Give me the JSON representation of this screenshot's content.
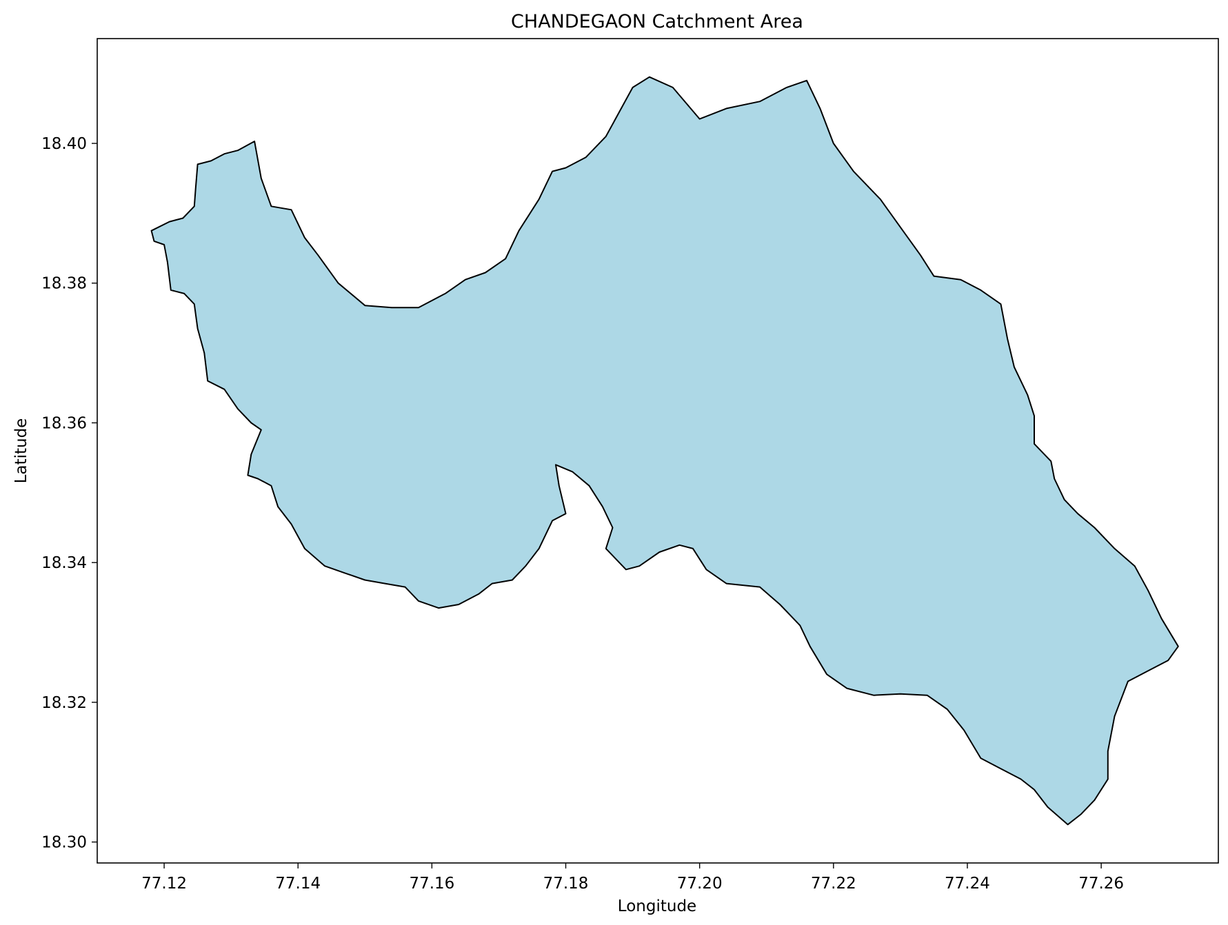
{
  "map": {
    "title": "CHANDEGAON Catchment Area",
    "xlabel": "Longitude",
    "ylabel": "Latitude",
    "x_ticks": [
      "77.12",
      "77.14",
      "77.16",
      "77.18",
      "77.20",
      "77.22",
      "77.24",
      "77.26"
    ],
    "y_ticks": [
      "18.40",
      "18.38",
      "18.36",
      "18.34",
      "18.32",
      "18.30"
    ],
    "xlim": [
      77.11,
      77.2775
    ],
    "ylim": [
      18.297,
      18.415
    ],
    "grid": false,
    "fill_color": "#add8e6",
    "edge_color": "#000000",
    "boundary": [
      [
        77.1181,
        18.3875
      ],
      [
        77.1208,
        18.3888
      ],
      [
        77.1228,
        18.3893
      ],
      [
        77.1245,
        18.391
      ],
      [
        77.1247,
        18.3935
      ],
      [
        77.125,
        18.397
      ],
      [
        77.127,
        18.3975
      ],
      [
        77.129,
        18.3985
      ],
      [
        77.131,
        18.399
      ],
      [
        77.1335,
        18.4003
      ],
      [
        77.1345,
        18.395
      ],
      [
        77.136,
        18.391
      ],
      [
        77.139,
        18.3905
      ],
      [
        77.141,
        18.3865
      ],
      [
        77.143,
        18.384
      ],
      [
        77.146,
        18.38
      ],
      [
        77.15,
        18.3768
      ],
      [
        77.154,
        18.3765
      ],
      [
        77.158,
        18.3765
      ],
      [
        77.162,
        18.3785
      ],
      [
        77.165,
        18.3805
      ],
      [
        77.168,
        18.3815
      ],
      [
        77.171,
        18.3835
      ],
      [
        77.173,
        18.3875
      ],
      [
        77.176,
        18.392
      ],
      [
        77.178,
        18.396
      ],
      [
        77.18,
        18.3965
      ],
      [
        77.183,
        18.398
      ],
      [
        77.186,
        18.401
      ],
      [
        77.188,
        18.4045
      ],
      [
        77.19,
        18.408
      ],
      [
        77.1925,
        18.4095
      ],
      [
        77.196,
        18.408
      ],
      [
        77.2,
        18.4035
      ],
      [
        77.204,
        18.405
      ],
      [
        77.209,
        18.406
      ],
      [
        77.213,
        18.408
      ],
      [
        77.216,
        18.409
      ],
      [
        77.218,
        18.405
      ],
      [
        77.22,
        18.4
      ],
      [
        77.223,
        18.396
      ],
      [
        77.227,
        18.392
      ],
      [
        77.23,
        18.388
      ],
      [
        77.233,
        18.384
      ],
      [
        77.235,
        18.381
      ],
      [
        77.239,
        18.3805
      ],
      [
        77.242,
        18.379
      ],
      [
        77.245,
        18.377
      ],
      [
        77.246,
        18.372
      ],
      [
        77.247,
        18.368
      ],
      [
        77.249,
        18.364
      ],
      [
        77.25,
        18.361
      ],
      [
        77.25,
        18.357
      ],
      [
        77.2525,
        18.3545
      ],
      [
        77.253,
        18.352
      ],
      [
        77.2545,
        18.349
      ],
      [
        77.2565,
        18.347
      ],
      [
        77.259,
        18.345
      ],
      [
        77.262,
        18.342
      ],
      [
        77.265,
        18.3395
      ],
      [
        77.267,
        18.336
      ],
      [
        77.269,
        18.332
      ],
      [
        77.2715,
        18.328
      ],
      [
        77.27,
        18.326
      ],
      [
        77.267,
        18.3245
      ],
      [
        77.264,
        18.323
      ],
      [
        77.262,
        18.318
      ],
      [
        77.261,
        18.313
      ],
      [
        77.261,
        18.309
      ],
      [
        77.259,
        18.306
      ],
      [
        77.257,
        18.304
      ],
      [
        77.255,
        18.3025
      ],
      [
        77.252,
        18.305
      ],
      [
        77.25,
        18.3075
      ],
      [
        77.248,
        18.309
      ],
      [
        77.245,
        18.3105
      ],
      [
        77.242,
        18.312
      ],
      [
        77.2395,
        18.316
      ],
      [
        77.237,
        18.319
      ],
      [
        77.234,
        18.321
      ],
      [
        77.23,
        18.3212
      ],
      [
        77.226,
        18.321
      ],
      [
        77.222,
        18.322
      ],
      [
        77.219,
        18.324
      ],
      [
        77.2165,
        18.328
      ],
      [
        77.215,
        18.331
      ],
      [
        77.212,
        18.334
      ],
      [
        77.209,
        18.3365
      ],
      [
        77.204,
        18.337
      ],
      [
        77.201,
        18.339
      ],
      [
        77.199,
        18.342
      ],
      [
        77.197,
        18.3425
      ],
      [
        77.194,
        18.3415
      ],
      [
        77.191,
        18.3395
      ],
      [
        77.189,
        18.339
      ],
      [
        77.186,
        18.342
      ],
      [
        77.187,
        18.345
      ],
      [
        77.1855,
        18.348
      ],
      [
        77.1835,
        18.351
      ],
      [
        77.181,
        18.353
      ],
      [
        77.1785,
        18.354
      ],
      [
        77.179,
        18.351
      ],
      [
        77.18,
        18.347
      ],
      [
        77.178,
        18.346
      ],
      [
        77.176,
        18.342
      ],
      [
        77.174,
        18.3395
      ],
      [
        77.172,
        18.3375
      ],
      [
        77.169,
        18.337
      ],
      [
        77.167,
        18.3355
      ],
      [
        77.164,
        18.334
      ],
      [
        77.161,
        18.3335
      ],
      [
        77.158,
        18.3345
      ],
      [
        77.156,
        18.3365
      ],
      [
        77.153,
        18.337
      ],
      [
        77.15,
        18.3375
      ],
      [
        77.147,
        18.3385
      ],
      [
        77.144,
        18.3395
      ],
      [
        77.141,
        18.342
      ],
      [
        77.139,
        18.3455
      ],
      [
        77.137,
        18.348
      ],
      [
        77.136,
        18.351
      ],
      [
        77.134,
        18.352
      ],
      [
        77.1325,
        18.3525
      ],
      [
        77.133,
        18.3555
      ],
      [
        77.1345,
        18.359
      ],
      [
        77.133,
        18.36
      ],
      [
        77.131,
        18.362
      ],
      [
        77.129,
        18.3648
      ],
      [
        77.1265,
        18.366
      ],
      [
        77.126,
        18.37
      ],
      [
        77.125,
        18.3735
      ],
      [
        77.1245,
        18.377
      ],
      [
        77.123,
        18.3785
      ],
      [
        77.121,
        18.379
      ],
      [
        77.1205,
        18.383
      ],
      [
        77.12,
        18.3855
      ],
      [
        77.1185,
        18.386
      ],
      [
        77.1181,
        18.3875
      ]
    ]
  }
}
